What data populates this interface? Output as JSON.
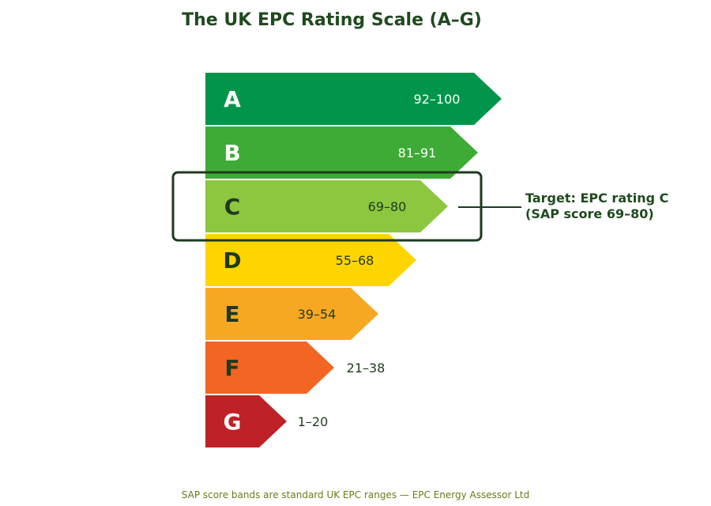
{
  "title": "The UK EPC Rating Scale (A–G)",
  "bands": [
    {
      "letter": "A",
      "range": "92–100",
      "color": "#00954a",
      "letter_color": "#ffffff",
      "range_color": "#ffffff"
    },
    {
      "letter": "B",
      "range": "81–91",
      "color": "#3dab35",
      "letter_color": "#ffffff",
      "range_color": "#ffffff"
    },
    {
      "letter": "C",
      "range": "69–80",
      "color": "#8dc63f",
      "letter_color": "#1f3a1f",
      "range_color": "#1f3a1f"
    },
    {
      "letter": "D",
      "range": "55–68",
      "color": "#ffd500",
      "letter_color": "#1f3a1f",
      "range_color": "#1f3a1f"
    },
    {
      "letter": "E",
      "range": "39–54",
      "color": "#f7a823",
      "letter_color": "#1f3a1f",
      "range_color": "#1f3a1f"
    },
    {
      "letter": "F",
      "range": "21–38",
      "color": "#f26522",
      "letter_color": "#1f3a1f",
      "range_color": "#1f3a1f"
    },
    {
      "letter": "G",
      "range": "1–20",
      "color": "#be2127",
      "letter_color": "#ffffff",
      "range_color": "#1f3a1f"
    }
  ],
  "highlight": {
    "band": "C",
    "line1": "Target: EPC rating C",
    "line2": "(SAP score 69–80)",
    "color": "#1f3a1f"
  },
  "footer": "SAP score bands are standard UK EPC ranges — EPC Energy Assessor Ltd"
}
